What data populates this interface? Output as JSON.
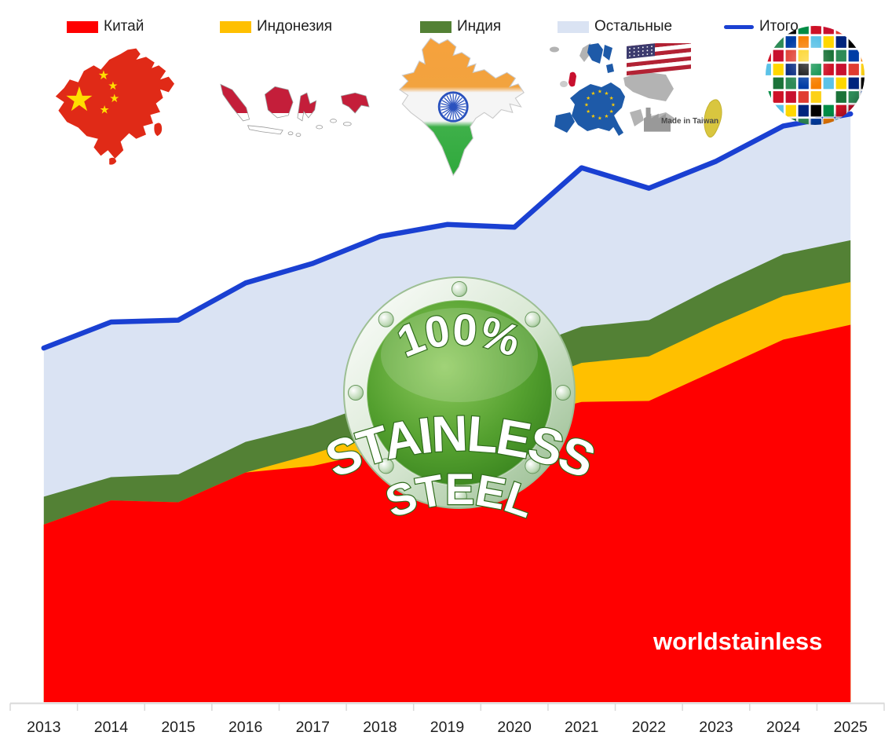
{
  "legend": {
    "items": [
      {
        "id": "china",
        "label": "Китай",
        "swatch_color": "#FF0000",
        "swatch_type": "box"
      },
      {
        "id": "indonesia",
        "label": "Индонезия",
        "swatch_color": "#FFC000",
        "swatch_type": "box"
      },
      {
        "id": "india",
        "label": "Индия",
        "swatch_color": "#538135",
        "swatch_type": "box"
      },
      {
        "id": "others",
        "label": "Остальные",
        "swatch_color": "#DAE3F3",
        "swatch_type": "box"
      },
      {
        "id": "total",
        "label": "Итого",
        "swatch_color": "#1A40D2",
        "swatch_type": "line"
      }
    ]
  },
  "icons": {
    "china_map": "china-flag-map",
    "indonesia_map": "indonesia-flag-map",
    "india_map": "india-flag-map",
    "others_group": "europe-usa-taiwan-maps",
    "taiwan_label": "Made in Taiwan",
    "globe": "globe-of-flags"
  },
  "badge": {
    "line1": "100%",
    "line2": "STAINLESS",
    "line3": "STEEL"
  },
  "watermark": "worldstainless",
  "chart_data": {
    "type": "area",
    "stacked": true,
    "categories": [
      2013,
      2014,
      2015,
      2016,
      2017,
      2018,
      2019,
      2020,
      2021,
      2022,
      2023,
      2024,
      2025
    ],
    "series": [
      {
        "name": "Китай",
        "color": "#FF0000",
        "values": [
          19.2,
          21.8,
          21.6,
          24.8,
          25.5,
          27.1,
          28.9,
          30.6,
          32.4,
          32.5,
          35.8,
          39.1,
          40.7
        ]
      },
      {
        "name": "Индонезия",
        "color": "#FFC000",
        "values": [
          0,
          0,
          0,
          0,
          1.3,
          2.0,
          2.6,
          3.3,
          4.2,
          4.8,
          4.9,
          4.7,
          4.6
        ]
      },
      {
        "name": "Индия",
        "color": "#538135",
        "values": [
          3.0,
          2.5,
          3.0,
          3.3,
          3.1,
          3.4,
          3.6,
          3.9,
          3.9,
          3.9,
          4.2,
          4.5,
          4.5
        ]
      },
      {
        "name": "Остальные",
        "color": "#DAE3F3",
        "values": [
          16.0,
          16.7,
          16.6,
          17.1,
          17.4,
          17.7,
          16.4,
          13.4,
          17.1,
          14.2,
          13.4,
          13.8,
          13.6
        ]
      }
    ],
    "line_series": {
      "name": "Итого",
      "color": "#1A40D2",
      "values": [
        38.2,
        41.0,
        41.2,
        45.2,
        47.3,
        50.2,
        51.5,
        51.2,
        57.6,
        55.4,
        58.3,
        62.1,
        63.4
      ]
    },
    "title": "",
    "xlabel": "",
    "ylabel": "",
    "ylim": [
      0,
      70
    ],
    "y_axis_shown": false,
    "gridlines": false,
    "legend_position": "top",
    "note": "No y-axis labels shown in the figure; values estimated from pixel heights (units consistent with million metric tons of stainless steel)."
  },
  "axis": {
    "tick_color": "#D9D9D9",
    "label_color": "#1f1f1f"
  }
}
